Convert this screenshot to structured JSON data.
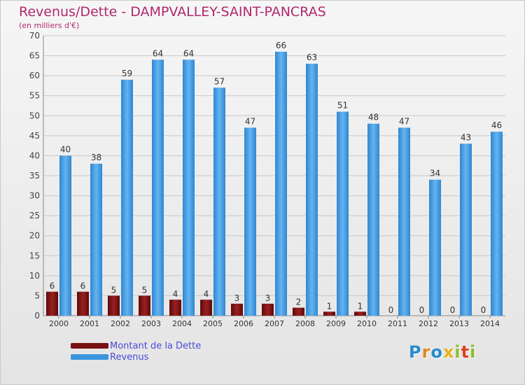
{
  "title": "Revenus/Dette - DAMPVALLEY-SAINT-PANCRAS",
  "subtitle": "(en milliers d'€)",
  "logo_text": "Proxiti",
  "colors": {
    "debt": "#7a1010",
    "revenue": "#3a95dd",
    "title": "#b0286e",
    "legend_text": "#4a4adc",
    "grid": "#c8c8c8"
  },
  "chart_data": {
    "type": "bar",
    "title": "Revenus/Dette - DAMPVALLEY-SAINT-PANCRAS",
    "subtitle": "(en milliers d'€)",
    "categories": [
      "2000",
      "2001",
      "2002",
      "2003",
      "2004",
      "2005",
      "2006",
      "2007",
      "2008",
      "2009",
      "2010",
      "2011",
      "2012",
      "2013",
      "2014"
    ],
    "series": [
      {
        "name": "Montant de la Dette",
        "values": [
          6,
          6,
          5,
          5,
          4,
          4,
          3,
          3,
          2,
          1,
          1,
          0,
          0,
          0,
          0
        ]
      },
      {
        "name": "Revenus",
        "values": [
          40,
          38,
          59,
          64,
          64,
          57,
          47,
          66,
          63,
          51,
          48,
          47,
          34,
          43,
          46
        ]
      }
    ],
    "ylim": [
      0,
      70
    ],
    "yticks": [
      0,
      5,
      10,
      15,
      20,
      25,
      30,
      35,
      40,
      45,
      50,
      55,
      60,
      65,
      70
    ],
    "grid": true,
    "legend_position": "bottom-left"
  }
}
